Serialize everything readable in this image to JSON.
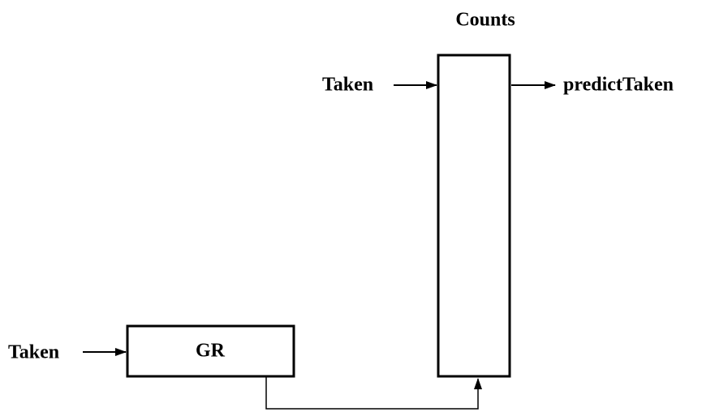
{
  "nodes": [
    {
      "label": "Counts"
    },
    {
      "label": "GR"
    }
  ],
  "inputs": [
    {
      "label": "Taken"
    },
    {
      "label": "Taken"
    }
  ],
  "outputs": [
    {
      "label": "predictTaken"
    }
  ]
}
